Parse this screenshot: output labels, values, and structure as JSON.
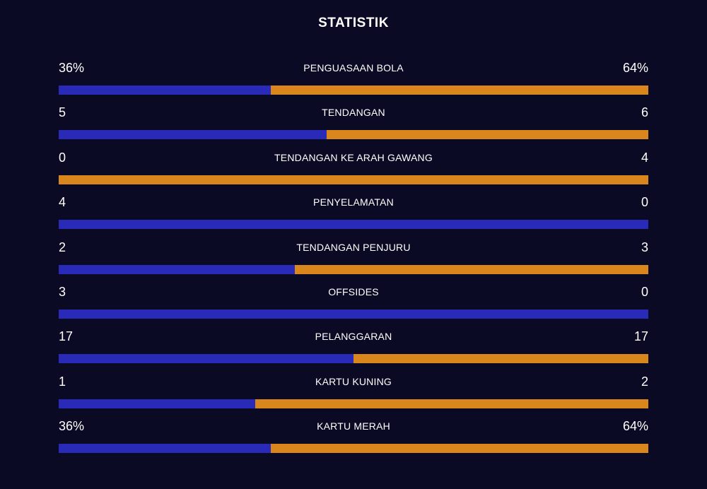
{
  "title": "STATISTIK",
  "colors": {
    "background": "#0b0a24",
    "home": "#2a2ab8",
    "away": "#d9871c",
    "text": "#ffffff"
  },
  "stats": [
    {
      "label": "PENGUASAAN BOLA",
      "home": "36%",
      "away": "64%",
      "home_share": 0.36
    },
    {
      "label": "TENDANGAN",
      "home": "5",
      "away": "6",
      "home_share": 0.4545
    },
    {
      "label": "TENDANGAN KE ARAH GAWANG",
      "home": "0",
      "away": "4",
      "home_share": 0.0
    },
    {
      "label": "PENYELAMATAN",
      "home": "4",
      "away": "0",
      "home_share": 1.0
    },
    {
      "label": "TENDANGAN PENJURU",
      "home": "2",
      "away": "3",
      "home_share": 0.4
    },
    {
      "label": "OFFSIDES",
      "home": "3",
      "away": "0",
      "home_share": 1.0
    },
    {
      "label": "PELANGGARAN",
      "home": "17",
      "away": "17",
      "home_share": 0.5
    },
    {
      "label": "KARTU KUNING",
      "home": "1",
      "away": "2",
      "home_share": 0.3333
    },
    {
      "label": "KARTU MERAH",
      "home": "36%",
      "away": "64%",
      "home_share": 0.36
    }
  ]
}
